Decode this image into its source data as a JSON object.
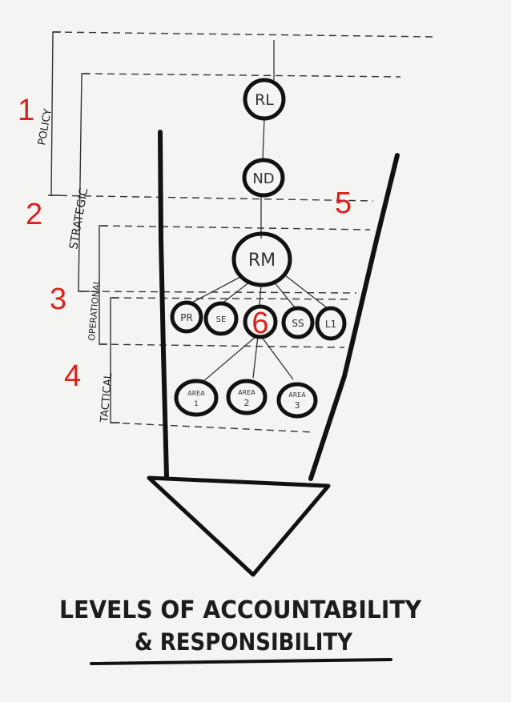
{
  "colors": {
    "ink": "#1c1c1c",
    "accent_red": "#d8231e",
    "paper": "#f4f4f2"
  },
  "levels": [
    {
      "number": "1",
      "label": "POLICY"
    },
    {
      "number": "2",
      "label": "STRATEGIC"
    },
    {
      "number": "3",
      "label": "OPERATIONAL"
    },
    {
      "number": "4",
      "label": "TACTICAL"
    }
  ],
  "side_number": "5",
  "center_number": "6",
  "nodes": {
    "rl": "RL",
    "nd": "ND",
    "rm": "RM",
    "pr": "PR",
    "se": "SE",
    "ss": "SS",
    "li": "L1",
    "area1_a": "AREA",
    "area1_b": "1",
    "area2_a": "AREA",
    "area2_b": "2",
    "area3_a": "AREA",
    "area3_b": "3"
  },
  "title": {
    "line1": "LEVELS OF ACCOUNTABILITY",
    "line2": "& RESPONSIBILITY"
  }
}
